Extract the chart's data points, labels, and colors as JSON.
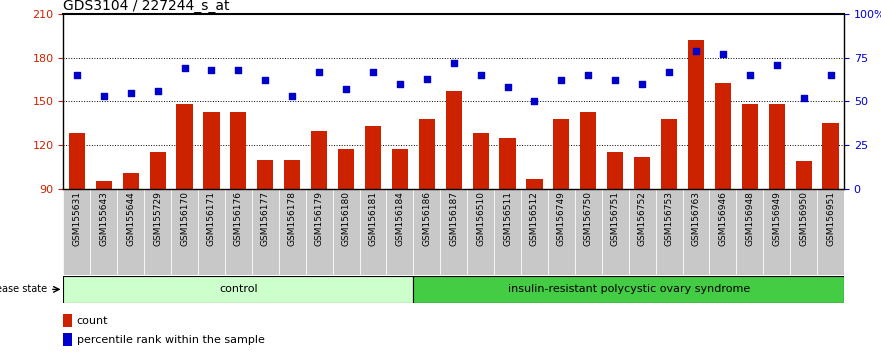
{
  "title": "GDS3104 / 227244_s_at",
  "samples": [
    "GSM155631",
    "GSM155643",
    "GSM155644",
    "GSM155729",
    "GSM156170",
    "GSM156171",
    "GSM156176",
    "GSM156177",
    "GSM156178",
    "GSM156179",
    "GSM156180",
    "GSM156181",
    "GSM156184",
    "GSM156186",
    "GSM156187",
    "GSM156510",
    "GSM156511",
    "GSM156512",
    "GSM156749",
    "GSM156750",
    "GSM156751",
    "GSM156752",
    "GSM156753",
    "GSM156763",
    "GSM156946",
    "GSM156948",
    "GSM156949",
    "GSM156950",
    "GSM156951"
  ],
  "bar_values": [
    128,
    95,
    101,
    115,
    148,
    143,
    143,
    110,
    110,
    130,
    117,
    133,
    117,
    138,
    157,
    128,
    125,
    97,
    138,
    143,
    115,
    112,
    138,
    192,
    163,
    148,
    148,
    109,
    135
  ],
  "dot_values_pct": [
    65,
    53,
    55,
    56,
    69,
    68,
    68,
    62,
    53,
    67,
    57,
    67,
    60,
    63,
    72,
    65,
    58,
    50,
    62,
    65,
    62,
    60,
    67,
    79,
    77,
    65,
    71,
    52,
    65
  ],
  "bar_bottom": 90,
  "ymin": 90,
  "ymax": 210,
  "yticks_left": [
    90,
    120,
    150,
    180,
    210
  ],
  "yticks_right": [
    0,
    25,
    50,
    75,
    100
  ],
  "bar_color": "#cc2200",
  "dot_color": "#0000cc",
  "control_label": "control",
  "disease_label": "insulin-resistant polycystic ovary syndrome",
  "disease_state_label": "disease state",
  "n_control": 13,
  "legend_count_label": "count",
  "legend_pct_label": "percentile rank within the sample",
  "control_bg": "#ccffcc",
  "disease_bg": "#44cc44",
  "tick_label_bg": "#c8c8c8",
  "title_fontsize": 10,
  "tick_fontsize": 6.5,
  "label_fontsize": 8,
  "grid_yticks": [
    120,
    150,
    180
  ]
}
